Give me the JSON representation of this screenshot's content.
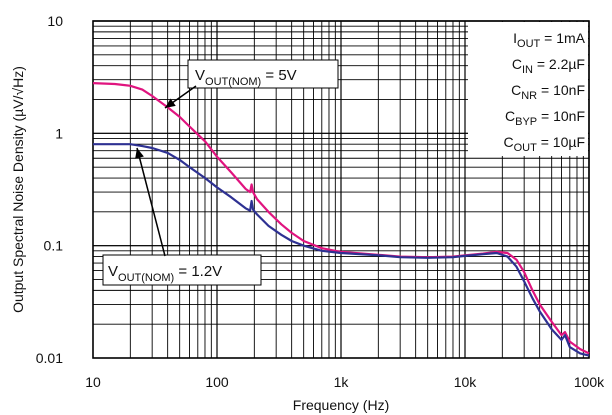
{
  "chart_data": {
    "type": "line",
    "title": "",
    "xlabel": "Frequency (Hz)",
    "ylabel": "Output Spectral Noise Density (µV/√Hz)",
    "xscale": "log",
    "yscale": "log",
    "xlim": [
      10,
      100000
    ],
    "ylim": [
      0.01,
      10
    ],
    "grid": true,
    "x_tick_labels": [
      "10",
      "100",
      "1k",
      "10k",
      "100k"
    ],
    "y_tick_labels": [
      "10",
      "1",
      "0.1",
      "0.01"
    ],
    "conditions_box_position": "top-right",
    "conditions": [
      {
        "base": "I",
        "sub": "OUT",
        "value": " = 1mA"
      },
      {
        "base": "C",
        "sub": "IN",
        "value": " = 2.2µF"
      },
      {
        "base": "C",
        "sub": "NR",
        "value": " = 10nF"
      },
      {
        "base": "C",
        "sub": "BYP",
        "value": " = 10nF"
      },
      {
        "base": "C",
        "sub": "OUT",
        "value": " = 10µF"
      }
    ],
    "series": [
      {
        "name": "V_OUT(NOM) = 5V",
        "label_base": "V",
        "label_sub": "OUT(NOM)",
        "label_value": " = 5V",
        "color": "#e0147f",
        "points": [
          [
            10,
            2.8
          ],
          [
            15,
            2.75
          ],
          [
            20,
            2.65
          ],
          [
            25,
            2.45
          ],
          [
            30,
            2.15
          ],
          [
            40,
            1.7
          ],
          [
            50,
            1.4
          ],
          [
            60,
            1.15
          ],
          [
            80,
            0.85
          ],
          [
            100,
            0.62
          ],
          [
            130,
            0.45
          ],
          [
            170,
            0.32
          ],
          [
            185,
            0.3
          ],
          [
            190,
            0.35
          ],
          [
            195,
            0.3
          ],
          [
            210,
            0.26
          ],
          [
            260,
            0.2
          ],
          [
            330,
            0.155
          ],
          [
            400,
            0.13
          ],
          [
            500,
            0.11
          ],
          [
            700,
            0.095
          ],
          [
            1000,
            0.088
          ],
          [
            2000,
            0.083
          ],
          [
            3000,
            0.08
          ],
          [
            5000,
            0.079
          ],
          [
            8000,
            0.08
          ],
          [
            10000,
            0.082
          ],
          [
            14000,
            0.085
          ],
          [
            18000,
            0.088
          ],
          [
            22000,
            0.086
          ],
          [
            26000,
            0.075
          ],
          [
            30000,
            0.058
          ],
          [
            35000,
            0.04
          ],
          [
            40000,
            0.03
          ],
          [
            50000,
            0.021
          ],
          [
            60000,
            0.016
          ],
          [
            64000,
            0.017
          ],
          [
            70000,
            0.014
          ],
          [
            85000,
            0.012
          ],
          [
            100000,
            0.011
          ]
        ]
      },
      {
        "name": "V_OUT(NOM) = 1.2V",
        "label_base": "V",
        "label_sub": "OUT(NOM)",
        "label_value": " = 1.2V",
        "color": "#2e3192",
        "points": [
          [
            10,
            0.8
          ],
          [
            15,
            0.8
          ],
          [
            20,
            0.8
          ],
          [
            25,
            0.77
          ],
          [
            30,
            0.74
          ],
          [
            40,
            0.67
          ],
          [
            50,
            0.58
          ],
          [
            60,
            0.5
          ],
          [
            80,
            0.4
          ],
          [
            100,
            0.33
          ],
          [
            130,
            0.27
          ],
          [
            170,
            0.215
          ],
          [
            185,
            0.205
          ],
          [
            190,
            0.25
          ],
          [
            195,
            0.21
          ],
          [
            210,
            0.19
          ],
          [
            260,
            0.15
          ],
          [
            330,
            0.125
          ],
          [
            400,
            0.11
          ],
          [
            500,
            0.1
          ],
          [
            700,
            0.09
          ],
          [
            1000,
            0.086
          ],
          [
            2000,
            0.082
          ],
          [
            3000,
            0.079
          ],
          [
            5000,
            0.078
          ],
          [
            8000,
            0.079
          ],
          [
            10000,
            0.081
          ],
          [
            14000,
            0.084
          ],
          [
            18000,
            0.086
          ],
          [
            22000,
            0.08
          ],
          [
            26000,
            0.065
          ],
          [
            30000,
            0.048
          ],
          [
            35000,
            0.034
          ],
          [
            40000,
            0.026
          ],
          [
            50000,
            0.018
          ],
          [
            60000,
            0.0145
          ],
          [
            64000,
            0.016
          ],
          [
            70000,
            0.0125
          ],
          [
            85000,
            0.011
          ],
          [
            100000,
            0.0105
          ]
        ]
      }
    ]
  }
}
